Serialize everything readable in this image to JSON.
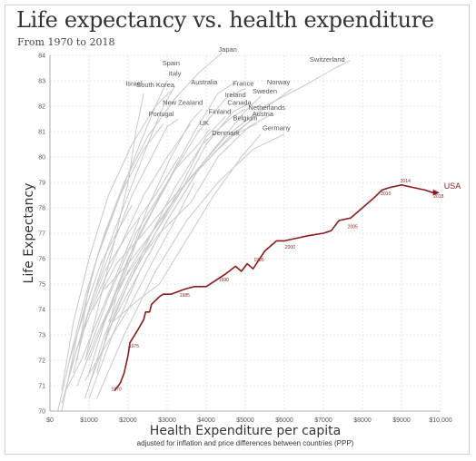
{
  "chart_data": {
    "type": "line",
    "title": "Life expectancy vs. health expenditure",
    "subtitle": "From 1970 to 2018",
    "xlabel": "Health Expenditure per capita",
    "xlabel_note": "adjusted for inflation and price differences between countries (PPP)",
    "ylabel": "Life Expectancy",
    "xlim": [
      0,
      10000
    ],
    "ylim": [
      70,
      84
    ],
    "grid": true,
    "x_tick_values": [
      0,
      1000,
      2000,
      3000,
      4000,
      5000,
      6000,
      7000,
      8000,
      9000,
      10000
    ],
    "x_tick_labels": [
      "$0",
      "$1000",
      "$2000",
      "$3000",
      "$4000",
      "$5000",
      "$6000",
      "$7000",
      "$8000",
      "$9000",
      "$10,000"
    ],
    "y_ticks": [
      70,
      71,
      72,
      73,
      74,
      75,
      76,
      77,
      78,
      79,
      80,
      81,
      82,
      83,
      84
    ],
    "highlight_color": "#8b1a1a",
    "other_color": "#c8c8c8",
    "usa": {
      "label": "USA",
      "points": [
        [
          1650,
          70.8
        ],
        [
          1800,
          71.1
        ],
        [
          1900,
          71.5
        ],
        [
          2000,
          72.2
        ],
        [
          2050,
          72.7
        ],
        [
          2250,
          73.2
        ],
        [
          2400,
          73.6
        ],
        [
          2450,
          73.9
        ],
        [
          2550,
          73.9
        ],
        [
          2600,
          74.2
        ],
        [
          2800,
          74.5
        ],
        [
          2900,
          74.6
        ],
        [
          3100,
          74.6
        ],
        [
          3450,
          74.8
        ],
        [
          3700,
          74.9
        ],
        [
          4000,
          74.9
        ],
        [
          4200,
          75.1
        ],
        [
          4500,
          75.4
        ],
        [
          4750,
          75.7
        ],
        [
          4900,
          75.5
        ],
        [
          5050,
          75.8
        ],
        [
          5200,
          75.6
        ],
        [
          5500,
          76.3
        ],
        [
          5800,
          76.7
        ],
        [
          6000,
          76.7
        ],
        [
          6300,
          76.8
        ],
        [
          6600,
          76.9
        ],
        [
          7000,
          77.0
        ],
        [
          7200,
          77.1
        ],
        [
          7400,
          77.5
        ],
        [
          7700,
          77.6
        ],
        [
          8000,
          78.0
        ],
        [
          8300,
          78.4
        ],
        [
          8500,
          78.7
        ],
        [
          8700,
          78.8
        ],
        [
          9000,
          78.9
        ],
        [
          9300,
          78.8
        ],
        [
          9600,
          78.7
        ],
        [
          9800,
          78.6
        ],
        [
          9900,
          78.6
        ]
      ],
      "year_labels": [
        {
          "text": "1970",
          "x": 1700,
          "y": 70.8
        },
        {
          "text": "1975",
          "x": 2150,
          "y": 72.5
        },
        {
          "text": "1985",
          "x": 3450,
          "y": 74.5
        },
        {
          "text": "1990",
          "x": 4450,
          "y": 75.1
        },
        {
          "text": "1995",
          "x": 5350,
          "y": 75.9
        },
        {
          "text": "2000",
          "x": 6150,
          "y": 76.4
        },
        {
          "text": "2005",
          "x": 7750,
          "y": 77.2
        },
        {
          "text": "2010",
          "x": 8600,
          "y": 78.5
        },
        {
          "text": "2014",
          "x": 9100,
          "y": 79.0
        },
        {
          "text": "2018",
          "x": 9950,
          "y": 78.4
        }
      ]
    },
    "countries": [
      {
        "name": "Japan",
        "points": [
          [
            700,
            72.0
          ],
          [
            1000,
            75.0
          ],
          [
            1400,
            77.0
          ],
          [
            1900,
            79.0
          ],
          [
            2500,
            80.8
          ],
          [
            3200,
            82.3
          ],
          [
            3800,
            83.3
          ],
          [
            4400,
            84.1
          ]
        ]
      },
      {
        "name": "Switzerland",
        "points": [
          [
            1300,
            73.2
          ],
          [
            2000,
            75.5
          ],
          [
            2800,
            77.5
          ],
          [
            3600,
            79.2
          ],
          [
            4500,
            80.8
          ],
          [
            5500,
            82.0
          ],
          [
            6500,
            82.8
          ],
          [
            7300,
            83.5
          ],
          [
            7700,
            83.8
          ]
        ]
      },
      {
        "name": "Spain",
        "points": [
          [
            500,
            72.0
          ],
          [
            900,
            74.5
          ],
          [
            1300,
            76.5
          ],
          [
            1800,
            78.5
          ],
          [
            2300,
            80.5
          ],
          [
            2700,
            82.0
          ],
          [
            3000,
            83.0
          ]
        ]
      },
      {
        "name": "Italy",
        "points": [
          [
            600,
            71.5
          ],
          [
            1000,
            74.0
          ],
          [
            1500,
            76.5
          ],
          [
            2000,
            78.5
          ],
          [
            2500,
            80.5
          ],
          [
            2900,
            82.0
          ],
          [
            3200,
            82.8
          ]
        ]
      },
      {
        "name": "Israel",
        "points": [
          [
            900,
            72.0
          ],
          [
            1300,
            74.5
          ],
          [
            1700,
            77.0
          ],
          [
            2000,
            79.0
          ],
          [
            2200,
            81.0
          ],
          [
            2400,
            82.5
          ]
        ]
      },
      {
        "name": "South Korea",
        "points": [
          [
            300,
            70.8
          ],
          [
            600,
            73.5
          ],
          [
            1000,
            76.0
          ],
          [
            1500,
            78.5
          ],
          [
            2100,
            80.5
          ],
          [
            2700,
            82.0
          ],
          [
            3100,
            82.6
          ]
        ]
      },
      {
        "name": "Australia",
        "points": [
          [
            1200,
            71.5
          ],
          [
            1700,
            74.5
          ],
          [
            2300,
            77.0
          ],
          [
            3000,
            79.0
          ],
          [
            3700,
            81.0
          ],
          [
            4300,
            82.5
          ],
          [
            4800,
            83.0
          ]
        ]
      },
      {
        "name": "France",
        "points": [
          [
            900,
            72.0
          ],
          [
            1500,
            74.5
          ],
          [
            2200,
            77.0
          ],
          [
            3000,
            79.0
          ],
          [
            3800,
            81.0
          ],
          [
            4500,
            82.3
          ],
          [
            5000,
            82.7
          ]
        ]
      },
      {
        "name": "Norway",
        "points": [
          [
            1100,
            74.0
          ],
          [
            1700,
            75.8
          ],
          [
            2400,
            77.0
          ],
          [
            3200,
            78.5
          ],
          [
            4300,
            80.3
          ],
          [
            5400,
            81.8
          ],
          [
            6200,
            82.7
          ]
        ]
      },
      {
        "name": "Sweden",
        "points": [
          [
            1400,
            74.8
          ],
          [
            2000,
            75.8
          ],
          [
            2700,
            77.2
          ],
          [
            3400,
            78.8
          ],
          [
            4300,
            80.5
          ],
          [
            5000,
            81.8
          ],
          [
            5400,
            82.4
          ]
        ]
      },
      {
        "name": "Ireland",
        "points": [
          [
            700,
            71.0
          ],
          [
            1200,
            73.0
          ],
          [
            1800,
            75.0
          ],
          [
            2500,
            76.5
          ],
          [
            3300,
            78.5
          ],
          [
            4000,
            80.5
          ],
          [
            4700,
            81.8
          ],
          [
            5100,
            82.1
          ]
        ]
      },
      {
        "name": "Canada",
        "points": [
          [
            1400,
            72.8
          ],
          [
            2000,
            75.0
          ],
          [
            2600,
            77.0
          ],
          [
            3200,
            78.8
          ],
          [
            3900,
            80.5
          ],
          [
            4600,
            81.5
          ],
          [
            5000,
            81.9
          ]
        ]
      },
      {
        "name": "New Zealand",
        "points": [
          [
            1000,
            71.5
          ],
          [
            1400,
            73.5
          ],
          [
            1900,
            75.5
          ],
          [
            2500,
            78.0
          ],
          [
            3100,
            80.0
          ],
          [
            3600,
            81.4
          ],
          [
            3900,
            81.9
          ]
        ]
      },
      {
        "name": "Netherlands",
        "points": [
          [
            1500,
            73.5
          ],
          [
            2100,
            75.5
          ],
          [
            2800,
            77.0
          ],
          [
            3600,
            78.2
          ],
          [
            4300,
            80.0
          ],
          [
            5100,
            81.2
          ],
          [
            5700,
            81.7
          ]
        ]
      },
      {
        "name": "Finland",
        "points": [
          [
            900,
            70.5
          ],
          [
            1400,
            73.0
          ],
          [
            2000,
            75.0
          ],
          [
            2700,
            77.0
          ],
          [
            3400,
            79.0
          ],
          [
            4000,
            80.8
          ],
          [
            4500,
            81.6
          ]
        ]
      },
      {
        "name": "Austria",
        "points": [
          [
            1000,
            70.5
          ],
          [
            1600,
            73.0
          ],
          [
            2300,
            75.5
          ],
          [
            3000,
            77.5
          ],
          [
            3800,
            79.5
          ],
          [
            4600,
            80.8
          ],
          [
            5300,
            81.3
          ]
        ]
      },
      {
        "name": "Portugal",
        "points": [
          [
            300,
            70.3
          ],
          [
            700,
            72.5
          ],
          [
            1100,
            74.5
          ],
          [
            1600,
            76.5
          ],
          [
            2100,
            78.5
          ],
          [
            2600,
            80.0
          ],
          [
            3000,
            81.2
          ],
          [
            3300,
            81.5
          ]
        ]
      },
      {
        "name": "UK",
        "points": [
          [
            1000,
            72.0
          ],
          [
            1500,
            74.0
          ],
          [
            2000,
            76.0
          ],
          [
            2600,
            77.8
          ],
          [
            3200,
            79.5
          ],
          [
            3800,
            80.5
          ],
          [
            4100,
            81.1
          ]
        ]
      },
      {
        "name": "Belgium",
        "points": [
          [
            1000,
            71.0
          ],
          [
            1600,
            73.5
          ],
          [
            2300,
            75.5
          ],
          [
            3000,
            77.5
          ],
          [
            3800,
            79.5
          ],
          [
            4600,
            80.8
          ],
          [
            5200,
            81.5
          ]
        ]
      },
      {
        "name": "Denmark",
        "points": [
          [
            1600,
            73.5
          ],
          [
            2200,
            74.3
          ],
          [
            2800,
            75.0
          ],
          [
            3400,
            76.5
          ],
          [
            4200,
            78.5
          ],
          [
            4900,
            80.0
          ],
          [
            5400,
            80.9
          ]
        ]
      },
      {
        "name": "Germany",
        "points": [
          [
            1200,
            70.5
          ],
          [
            1900,
            73.0
          ],
          [
            2700,
            75.5
          ],
          [
            3500,
            77.5
          ],
          [
            4300,
            79.0
          ],
          [
            5200,
            80.3
          ],
          [
            6000,
            80.9
          ]
        ]
      },
      {
        "name": "",
        "points": [
          [
            300,
            70.0
          ],
          [
            700,
            73.0
          ],
          [
            1200,
            76.0
          ],
          [
            1800,
            78.5
          ],
          [
            2400,
            80.3
          ],
          [
            2900,
            81.3
          ]
        ]
      },
      {
        "name": "",
        "points": [
          [
            500,
            71.5
          ],
          [
            900,
            73.5
          ],
          [
            1400,
            75.5
          ],
          [
            2000,
            77.0
          ],
          [
            2700,
            78.5
          ],
          [
            3300,
            80.0
          ]
        ]
      },
      {
        "name": "",
        "points": [
          [
            900,
            71.2
          ],
          [
            1400,
            72.5
          ],
          [
            2000,
            74.0
          ],
          [
            2600,
            75.8
          ],
          [
            3200,
            77.5
          ],
          [
            3700,
            79.0
          ]
        ]
      },
      {
        "name": "",
        "points": [
          [
            400,
            70.8
          ],
          [
            800,
            72.0
          ],
          [
            1200,
            73.5
          ],
          [
            1600,
            75.0
          ],
          [
            2000,
            76.5
          ],
          [
            2300,
            77.6
          ]
        ]
      },
      {
        "name": "",
        "points": [
          [
            700,
            72.5
          ],
          [
            1200,
            74.5
          ],
          [
            1800,
            76.5
          ],
          [
            2400,
            78.5
          ],
          [
            3000,
            80.0
          ],
          [
            3600,
            81.3
          ]
        ]
      },
      {
        "name": "",
        "points": [
          [
            200,
            70.0
          ],
          [
            500,
            72.0
          ],
          [
            900,
            74.0
          ],
          [
            1300,
            75.8
          ],
          [
            1700,
            77.0
          ],
          [
            2100,
            78.1
          ]
        ]
      }
    ],
    "country_labels": [
      {
        "text": "Japan",
        "x": 4550,
        "y": 84.15
      },
      {
        "text": "Spain",
        "x": 3100,
        "y": 83.6
      },
      {
        "text": "Italy",
        "x": 3200,
        "y": 83.2
      },
      {
        "text": "Switzerland",
        "x": 7100,
        "y": 83.75
      },
      {
        "text": "Israel",
        "x": 2150,
        "y": 82.8
      },
      {
        "text": "South Korea",
        "x": 2700,
        "y": 82.75
      },
      {
        "text": "Australia",
        "x": 3950,
        "y": 82.85
      },
      {
        "text": "France",
        "x": 4950,
        "y": 82.8
      },
      {
        "text": "Norway",
        "x": 5850,
        "y": 82.85
      },
      {
        "text": "Sweden",
        "x": 5500,
        "y": 82.5
      },
      {
        "text": "Ireland",
        "x": 4750,
        "y": 82.35
      },
      {
        "text": "New Zealand",
        "x": 3400,
        "y": 82.05
      },
      {
        "text": "Canada",
        "x": 4850,
        "y": 82.05
      },
      {
        "text": "Netherlands",
        "x": 5550,
        "y": 81.85
      },
      {
        "text": "Finland",
        "x": 4350,
        "y": 81.7
      },
      {
        "text": "Austria",
        "x": 5450,
        "y": 81.6
      },
      {
        "text": "Portugal",
        "x": 2850,
        "y": 81.6
      },
      {
        "text": "Belgium",
        "x": 5000,
        "y": 81.45
      },
      {
        "text": "UK",
        "x": 3950,
        "y": 81.25
      },
      {
        "text": "Germany",
        "x": 5800,
        "y": 81.05
      },
      {
        "text": "Denmark",
        "x": 4500,
        "y": 80.85
      }
    ]
  }
}
